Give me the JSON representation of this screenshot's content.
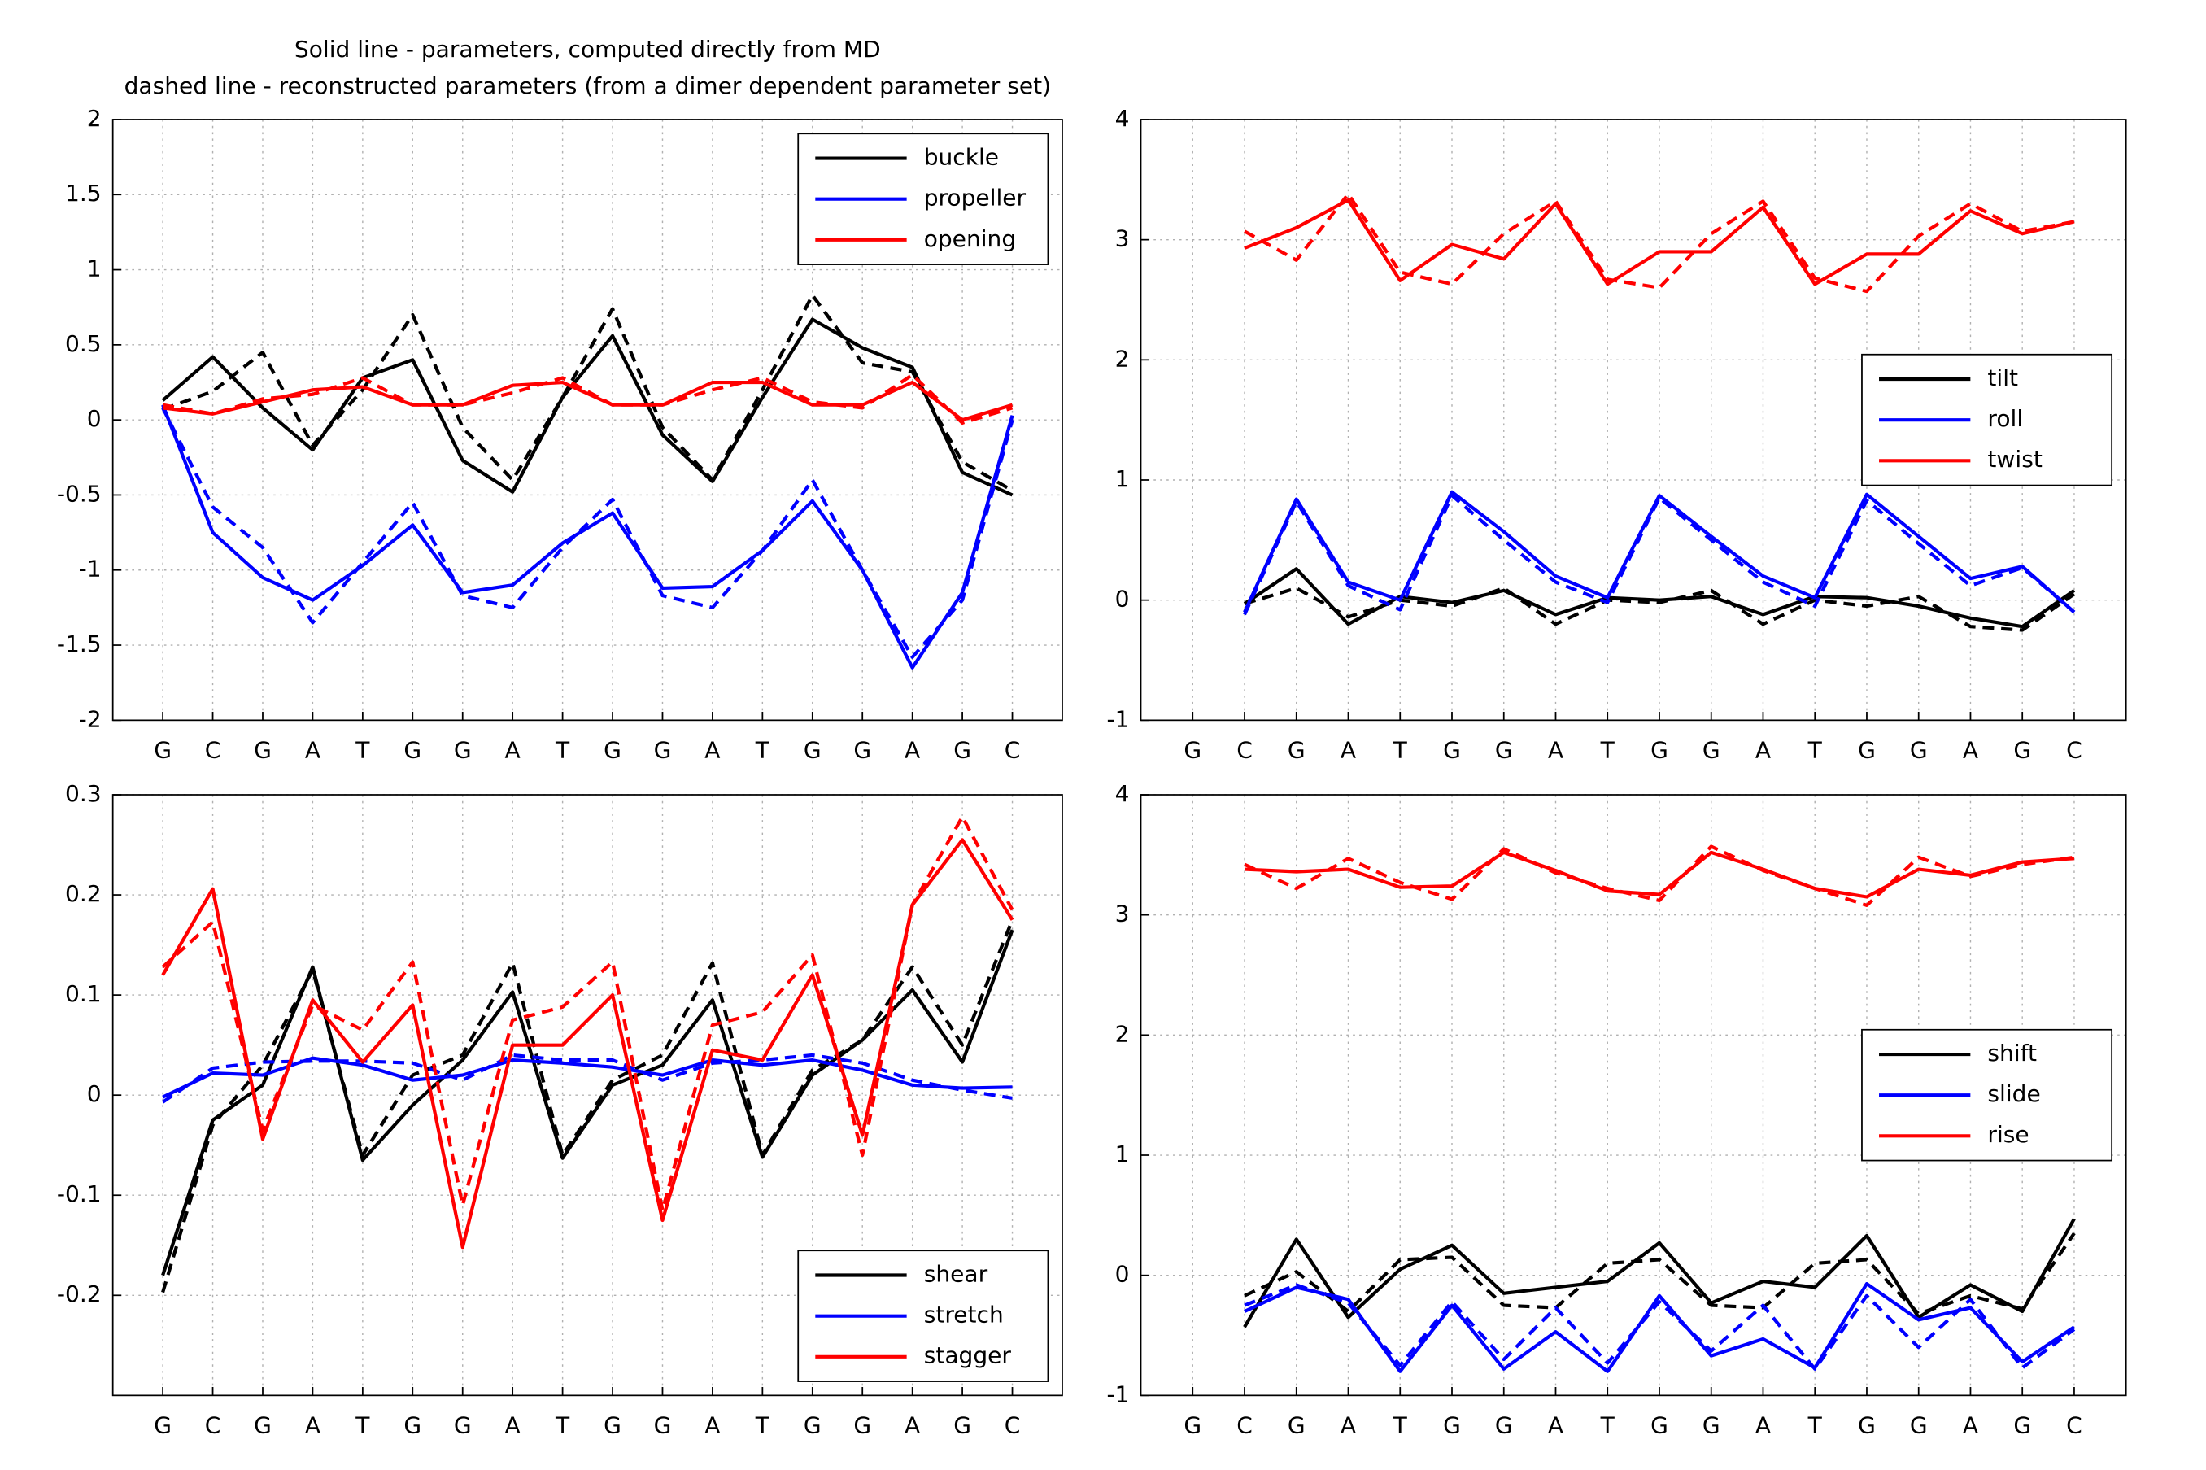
{
  "chart_data": [
    {
      "type": "line",
      "title": [
        "Solid line - parameters, computed directly from MD",
        "dashed line - reconstructed parameters (from a dimer dependent parameter set)"
      ],
      "categories": [
        "G",
        "C",
        "G",
        "A",
        "T",
        "G",
        "G",
        "A",
        "T",
        "G",
        "G",
        "A",
        "T",
        "G",
        "G",
        "A",
        "G",
        "C"
      ],
      "ylim": [
        -2,
        2
      ],
      "yticks": [
        -2,
        -1.5,
        -1,
        -0.5,
        0,
        0.5,
        1,
        1.5,
        2
      ],
      "grid": true,
      "legend": "upper right",
      "series": [
        {
          "name": "buckle",
          "color": "#000000",
          "values": [
            0.13,
            0.42,
            0.08,
            -0.2,
            0.28,
            0.4,
            -0.27,
            -0.48,
            0.15,
            0.56,
            -0.1,
            -0.41,
            0.15,
            0.67,
            0.48,
            0.35,
            -0.35,
            -0.5
          ],
          "reconstructed": [
            0.07,
            0.19,
            0.45,
            -0.17,
            0.2,
            0.7,
            -0.05,
            -0.4,
            0.15,
            0.74,
            -0.05,
            -0.4,
            0.2,
            0.83,
            0.38,
            0.32,
            -0.28,
            -0.47
          ]
        },
        {
          "name": "propeller",
          "color": "#0000ff",
          "values": [
            0.1,
            -0.75,
            -1.05,
            -1.2,
            -0.97,
            -0.7,
            -1.15,
            -1.1,
            -0.82,
            -0.62,
            -1.12,
            -1.11,
            -0.87,
            -0.54,
            -1.0,
            -1.65,
            -1.15,
            0.03
          ],
          "reconstructed": [
            0.08,
            -0.58,
            -0.85,
            -1.35,
            -0.95,
            -0.55,
            -1.17,
            -1.25,
            -0.85,
            -0.53,
            -1.17,
            -1.25,
            -0.87,
            -0.4,
            -1.0,
            -1.58,
            -1.2,
            0.0
          ]
        },
        {
          "name": "opening",
          "color": "#ff0000",
          "values": [
            0.08,
            0.04,
            0.12,
            0.2,
            0.22,
            0.1,
            0.1,
            0.23,
            0.25,
            0.1,
            0.1,
            0.25,
            0.25,
            0.1,
            0.1,
            0.25,
            0.0,
            0.1
          ],
          "reconstructed": [
            0.1,
            0.04,
            0.14,
            0.17,
            0.28,
            0.1,
            0.1,
            0.18,
            0.28,
            0.1,
            0.1,
            0.2,
            0.28,
            0.12,
            0.08,
            0.3,
            -0.02,
            0.08
          ]
        }
      ]
    },
    {
      "type": "line",
      "categories": [
        "G",
        "C",
        "G",
        "A",
        "T",
        "G",
        "G",
        "A",
        "T",
        "G",
        "G",
        "A",
        "T",
        "G",
        "G",
        "A",
        "G",
        "C"
      ],
      "ylim": [
        -1,
        4
      ],
      "yticks": [
        -1,
        0,
        1,
        2,
        3,
        4
      ],
      "grid": true,
      "legend": "center right",
      "series": [
        {
          "name": "tilt",
          "color": "#000000",
          "values": [
            null,
            -0.03,
            0.26,
            -0.2,
            0.03,
            -0.02,
            0.08,
            -0.12,
            0.02,
            0.0,
            0.03,
            -0.12,
            0.03,
            0.02,
            -0.05,
            -0.15,
            -0.22,
            0.08
          ],
          "reconstructed": [
            null,
            -0.03,
            0.1,
            -0.14,
            0.0,
            -0.05,
            0.1,
            -0.2,
            0.0,
            -0.02,
            0.08,
            -0.2,
            0.0,
            -0.05,
            0.03,
            -0.22,
            -0.25,
            0.05
          ]
        },
        {
          "name": "roll",
          "color": "#0000ff",
          "values": [
            null,
            -0.1,
            0.84,
            0.15,
            0.0,
            0.9,
            0.57,
            0.2,
            0.02,
            0.87,
            0.53,
            0.2,
            0.02,
            0.88,
            0.53,
            0.18,
            0.28,
            -0.1
          ],
          "reconstructed": [
            null,
            -0.12,
            0.82,
            0.12,
            -0.08,
            0.87,
            0.5,
            0.15,
            -0.02,
            0.85,
            0.5,
            0.15,
            -0.05,
            0.83,
            0.47,
            0.12,
            0.27,
            -0.1
          ]
        },
        {
          "name": "twist",
          "color": "#ff0000",
          "values": [
            null,
            2.93,
            3.1,
            3.33,
            2.66,
            2.96,
            2.84,
            3.3,
            2.63,
            2.9,
            2.9,
            3.27,
            2.63,
            2.88,
            2.88,
            3.24,
            3.05,
            3.15
          ],
          "reconstructed": [
            null,
            3.07,
            2.83,
            3.38,
            2.73,
            2.63,
            3.05,
            3.32,
            2.67,
            2.6,
            3.05,
            3.32,
            2.68,
            2.57,
            3.03,
            3.3,
            3.07,
            3.15
          ]
        }
      ]
    },
    {
      "type": "line",
      "categories": [
        "G",
        "C",
        "G",
        "A",
        "T",
        "G",
        "G",
        "A",
        "T",
        "G",
        "G",
        "A",
        "T",
        "G",
        "G",
        "A",
        "G",
        "C"
      ],
      "ylim": [
        -0.3,
        0.3
      ],
      "yticks": [
        -0.2,
        -0.1,
        0,
        0.1,
        0.2,
        0.3
      ],
      "grid": true,
      "legend": "lower right",
      "series": [
        {
          "name": "shear",
          "color": "#000000",
          "values": [
            -0.18,
            -0.025,
            0.01,
            0.128,
            -0.065,
            -0.01,
            0.035,
            0.103,
            -0.063,
            0.01,
            0.03,
            0.095,
            -0.062,
            0.02,
            0.055,
            0.105,
            0.033,
            0.165
          ],
          "reconstructed": [
            -0.197,
            -0.03,
            0.03,
            0.125,
            -0.06,
            0.02,
            0.04,
            0.132,
            -0.06,
            0.015,
            0.04,
            0.132,
            -0.06,
            0.025,
            0.055,
            0.128,
            0.05,
            0.175
          ]
        },
        {
          "name": "stretch",
          "color": "#0000ff",
          "values": [
            -0.002,
            0.022,
            0.02,
            0.037,
            0.03,
            0.015,
            0.02,
            0.035,
            0.032,
            0.028,
            0.02,
            0.035,
            0.03,
            0.035,
            0.025,
            0.01,
            0.007,
            0.008
          ],
          "reconstructed": [
            -0.007,
            0.027,
            0.033,
            0.034,
            0.034,
            0.032,
            0.015,
            0.04,
            0.035,
            0.035,
            0.015,
            0.032,
            0.035,
            0.04,
            0.032,
            0.015,
            0.005,
            -0.003
          ]
        },
        {
          "name": "stagger",
          "color": "#ff0000",
          "values": [
            0.12,
            0.206,
            -0.044,
            0.095,
            0.033,
            0.09,
            -0.152,
            0.05,
            0.05,
            0.1,
            -0.125,
            0.045,
            0.035,
            0.12,
            -0.04,
            0.19,
            0.255,
            0.175
          ],
          "reconstructed": [
            0.128,
            0.173,
            -0.035,
            0.09,
            0.065,
            0.133,
            -0.11,
            0.075,
            0.088,
            0.133,
            -0.115,
            0.07,
            0.083,
            0.14,
            -0.06,
            0.19,
            0.278,
            0.185
          ]
        }
      ]
    },
    {
      "type": "line",
      "categories": [
        "G",
        "C",
        "G",
        "A",
        "T",
        "G",
        "G",
        "A",
        "T",
        "G",
        "G",
        "A",
        "T",
        "G",
        "G",
        "A",
        "G",
        "C"
      ],
      "ylim": [
        -1,
        4
      ],
      "yticks": [
        -1,
        0,
        1,
        2,
        3,
        4
      ],
      "grid": true,
      "legend": "center right",
      "series": [
        {
          "name": "shift",
          "color": "#000000",
          "values": [
            null,
            -0.43,
            0.3,
            -0.35,
            0.05,
            0.25,
            -0.15,
            -0.1,
            -0.05,
            0.27,
            -0.23,
            -0.05,
            -0.1,
            0.33,
            -0.35,
            -0.08,
            -0.3,
            0.47
          ],
          "reconstructed": [
            null,
            -0.17,
            0.03,
            -0.3,
            0.13,
            0.15,
            -0.25,
            -0.27,
            0.1,
            0.13,
            -0.25,
            -0.27,
            0.1,
            0.13,
            -0.32,
            -0.17,
            -0.28,
            0.35
          ]
        },
        {
          "name": "slide",
          "color": "#0000ff",
          "values": [
            null,
            -0.3,
            -0.1,
            -0.2,
            -0.8,
            -0.25,
            -0.78,
            -0.47,
            -0.8,
            -0.17,
            -0.67,
            -0.53,
            -0.77,
            -0.07,
            -0.37,
            -0.27,
            -0.72,
            -0.43
          ],
          "reconstructed": [
            null,
            -0.25,
            -0.08,
            -0.23,
            -0.75,
            -0.22,
            -0.7,
            -0.27,
            -0.73,
            -0.22,
            -0.63,
            -0.25,
            -0.78,
            -0.17,
            -0.6,
            -0.2,
            -0.77,
            -0.45
          ]
        },
        {
          "name": "rise",
          "color": "#ff0000",
          "values": [
            null,
            3.38,
            3.36,
            3.38,
            3.23,
            3.24,
            3.52,
            3.37,
            3.2,
            3.17,
            3.52,
            3.38,
            3.22,
            3.15,
            3.38,
            3.33,
            3.44,
            3.47
          ],
          "reconstructed": [
            null,
            3.42,
            3.22,
            3.47,
            3.27,
            3.13,
            3.55,
            3.35,
            3.22,
            3.12,
            3.57,
            3.37,
            3.22,
            3.08,
            3.48,
            3.32,
            3.42,
            3.48
          ]
        }
      ]
    }
  ]
}
